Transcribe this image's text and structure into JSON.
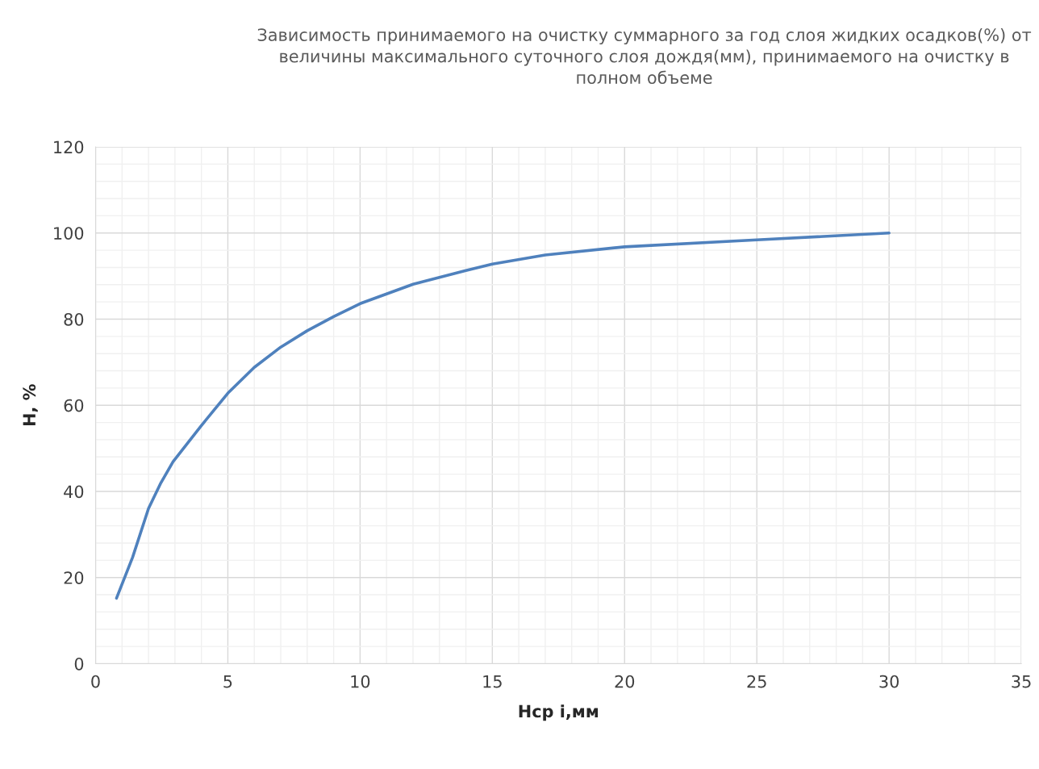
{
  "chart_data": {
    "type": "line",
    "title": "Зависимость принимаемого на очистку суммарного за год слоя жидких осадков(%) от величины максимального суточного слоя дождя(мм), принимаемого на очистку в полном объеме",
    "xlabel": "Нср i,мм",
    "ylabel": "Н, %",
    "x": [
      0.79,
      1.4,
      2.0,
      2.47,
      2.93,
      4.0,
      5,
      6,
      7,
      8,
      9,
      10,
      12,
      14,
      15,
      17,
      20,
      25,
      30
    ],
    "series": [
      {
        "color": "#4f81bd",
        "values": [
          15.2,
          24.7,
          36,
          42,
          46.9,
          55.3,
          62.8,
          68.8,
          73.5,
          77.3,
          80.6,
          83.6,
          88.1,
          91.3,
          92.8,
          94.9,
          96.8,
          98.4,
          100
        ]
      }
    ],
    "xlim": [
      0,
      35
    ],
    "xticks": [
      0,
      5,
      10,
      15,
      20,
      25,
      30,
      35
    ],
    "ylim": [
      0,
      120
    ],
    "yticks": [
      0,
      20,
      40,
      60,
      80,
      100,
      120
    ],
    "grid": true,
    "marker": "none",
    "line_style": "solid"
  }
}
